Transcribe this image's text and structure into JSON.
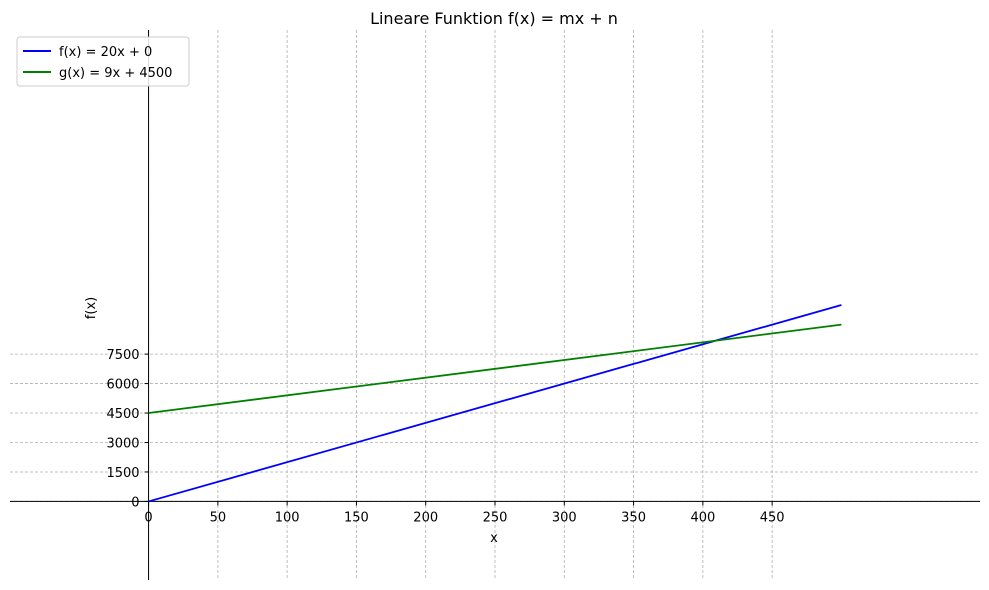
{
  "chart_data": {
    "type": "line",
    "title": "Lineare Funktion f(x) = mx + n",
    "xlabel": "x",
    "ylabel": "f(x)",
    "xlim": [
      -100,
      600
    ],
    "ylim": [
      -4000,
      24000
    ],
    "x_ticks": [
      0,
      50,
      100,
      150,
      200,
      250,
      300,
      350,
      400,
      450
    ],
    "y_ticks": [
      0,
      1500,
      3000,
      4500,
      6000,
      7500
    ],
    "grid": true,
    "legend_position": "top-left",
    "series": [
      {
        "name": "f(x) = 20x + 0",
        "color": "#0000ff",
        "x": [
          0,
          500
        ],
        "y": [
          0,
          10000
        ]
      },
      {
        "name": "g(x) = 9x + 4500",
        "color": "#008000",
        "x": [
          0,
          500
        ],
        "y": [
          4500,
          9000
        ]
      }
    ]
  }
}
